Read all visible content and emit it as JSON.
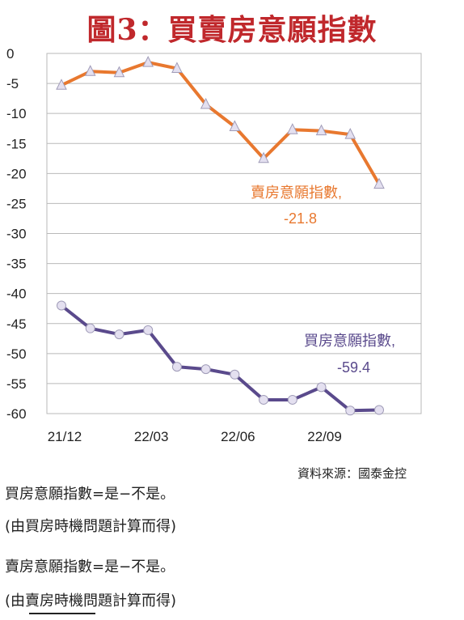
{
  "title": "圖3：買賣房意願指數",
  "chart_data": {
    "type": "line",
    "categories": [
      "21/12",
      "22/01",
      "22/02",
      "22/03",
      "22/04",
      "22/05",
      "22/06",
      "22/07",
      "22/08",
      "22/09",
      "22/10",
      "22/11"
    ],
    "x_tick_labels": [
      "21/12",
      "22/03",
      "22/06",
      "22/09"
    ],
    "y_ticks": [
      0,
      -5,
      -10,
      -15,
      -20,
      -25,
      -30,
      -35,
      -40,
      -45,
      -50,
      -55,
      -60
    ],
    "ylim": [
      -60,
      0
    ],
    "grid": true,
    "series": [
      {
        "name": "賣房意願指數",
        "color": "#e8782f",
        "values": [
          -5.3,
          -3.0,
          -3.2,
          -1.5,
          -2.5,
          -8.5,
          -12.2,
          -17.5,
          -12.7,
          -12.9,
          -13.5,
          -21.8
        ],
        "label_name": "賣房意願指數,",
        "label_value": "-21.8"
      },
      {
        "name": "買房意願指數",
        "color": "#5a4a8c",
        "values": [
          -42.0,
          -45.8,
          -46.8,
          -46.1,
          -52.2,
          -52.6,
          -53.5,
          -57.7,
          -57.7,
          -55.6,
          -59.5,
          -59.4
        ],
        "label_name": "買房意願指數,",
        "label_value": "-59.4"
      }
    ]
  },
  "source": "資料來源：國泰金控",
  "notes": [
    {
      "line1": "買房意願指數=是−不是。",
      "line2": "(由買房時機問題計算而得)"
    },
    {
      "line1": "賣房意願指數=是−不是。",
      "line2": "(由賣房時機問題計算而得)"
    }
  ]
}
